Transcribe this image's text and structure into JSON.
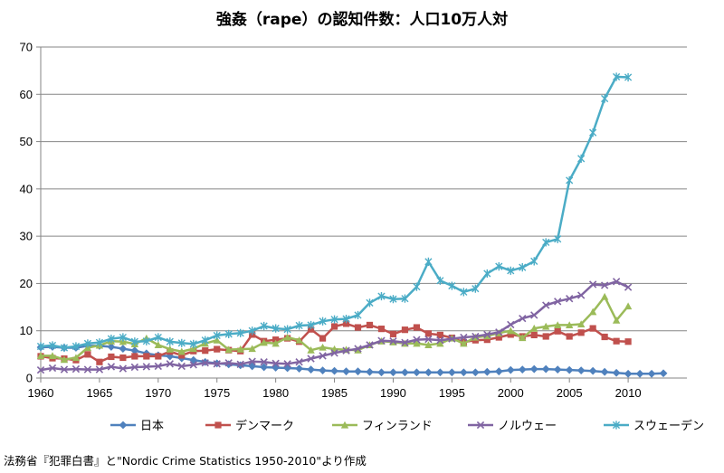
{
  "chart_data": {
    "type": "line",
    "title": "強姦（rape）の認知件数：人口10万人対",
    "source": "法務省『犯罪白書』と\"Nordic Crime Statistics 1950-2010\"より作成",
    "xlim": [
      1960,
      2015
    ],
    "ylim": [
      0,
      70
    ],
    "x_ticks": [
      1960,
      1965,
      1970,
      1975,
      1980,
      1985,
      1990,
      1995,
      2000,
      2005,
      2010
    ],
    "y_ticks": [
      0,
      10,
      20,
      30,
      40,
      50,
      60,
      70
    ],
    "grid": "horizontal",
    "legend_position": "bottom",
    "series": [
      {
        "name": "日本",
        "color": "#4f81bd",
        "marker": "diamond",
        "start": 1960,
        "values": [
          6.5,
          6.6,
          6.4,
          6.4,
          6.8,
          6.8,
          6.6,
          6.2,
          5.8,
          5.2,
          4.8,
          4.6,
          4.2,
          3.8,
          3.4,
          3.1,
          2.9,
          2.7,
          2.5,
          2.3,
          2.2,
          2.1,
          2.0,
          1.8,
          1.6,
          1.5,
          1.4,
          1.4,
          1.3,
          1.2,
          1.2,
          1.2,
          1.2,
          1.2,
          1.2,
          1.2,
          1.2,
          1.2,
          1.3,
          1.4,
          1.7,
          1.8,
          1.9,
          1.9,
          1.8,
          1.7,
          1.6,
          1.5,
          1.3,
          1.1,
          0.9,
          0.9,
          0.9,
          1.0
        ]
      },
      {
        "name": "デンマーク",
        "color": "#c0504d",
        "marker": "square",
        "start": 1960,
        "values": [
          4.6,
          4.2,
          4.1,
          3.8,
          5.0,
          3.4,
          4.5,
          4.3,
          4.6,
          4.6,
          4.6,
          5.6,
          4.8,
          5.7,
          5.8,
          6.1,
          5.9,
          5.7,
          9.2,
          7.8,
          8.1,
          8.4,
          7.7,
          10.3,
          8.4,
          10.9,
          11.5,
          10.7,
          11.2,
          10.4,
          9.3,
          10.2,
          10.7,
          9.4,
          9.1,
          8.5,
          7.6,
          8.0,
          8.1,
          8.6,
          9.2,
          8.8,
          9.1,
          8.8,
          9.9,
          8.8,
          9.6,
          10.5,
          8.7,
          7.8,
          7.7
        ]
      },
      {
        "name": "フィンランド",
        "color": "#9bbb59",
        "marker": "triangle",
        "start": 1960,
        "values": [
          4.7,
          4.7,
          3.9,
          4.3,
          6.4,
          6.9,
          7.8,
          7.7,
          7.2,
          8.4,
          7.0,
          6.1,
          5.6,
          6.2,
          7.3,
          8.0,
          6.0,
          6.1,
          6.2,
          7.5,
          7.3,
          8.6,
          8.0,
          5.9,
          6.5,
          6.1,
          6.0,
          5.9,
          7.0,
          7.8,
          7.6,
          7.3,
          7.3,
          7.0,
          7.3,
          8.4,
          7.3,
          8.6,
          8.9,
          9.5,
          10.0,
          8.5,
          10.5,
          10.9,
          11.2,
          11.2,
          11.4,
          14.0,
          17.2,
          12.2,
          15.2
        ]
      },
      {
        "name": "ノルウェー",
        "color": "#8064a2",
        "marker": "x",
        "start": 1960,
        "values": [
          1.7,
          2.1,
          1.8,
          1.9,
          1.8,
          1.8,
          2.4,
          2.0,
          2.3,
          2.4,
          2.5,
          3.0,
          2.5,
          2.8,
          3.2,
          3.0,
          3.2,
          2.9,
          3.5,
          3.4,
          3.1,
          3.0,
          3.4,
          4.1,
          4.7,
          5.3,
          5.8,
          6.2,
          7.0,
          7.9,
          7.8,
          7.5,
          8.1,
          8.2,
          8.0,
          8.3,
          8.6,
          8.8,
          9.2,
          9.7,
          11.3,
          12.6,
          13.3,
          15.4,
          16.2,
          16.8,
          17.5,
          19.8,
          19.6,
          20.4,
          19.2
        ]
      },
      {
        "name": "スウェーデン",
        "color": "#4bacc6",
        "marker": "star",
        "start": 1960,
        "values": [
          6.7,
          6.9,
          6.4,
          6.7,
          7.3,
          7.5,
          8.3,
          8.6,
          7.7,
          7.8,
          8.6,
          7.7,
          7.4,
          7.2,
          8.0,
          9.0,
          9.3,
          9.5,
          10.0,
          11.0,
          10.5,
          10.3,
          11.1,
          11.2,
          12.0,
          12.4,
          12.5,
          13.3,
          15.9,
          17.3,
          16.7,
          16.8,
          19.3,
          24.6,
          20.6,
          19.5,
          18.2,
          18.9,
          22.1,
          23.6,
          22.7,
          23.4,
          24.7,
          28.7,
          29.4,
          41.8,
          46.4,
          51.9,
          59.1,
          63.7,
          63.6
        ]
      }
    ]
  }
}
